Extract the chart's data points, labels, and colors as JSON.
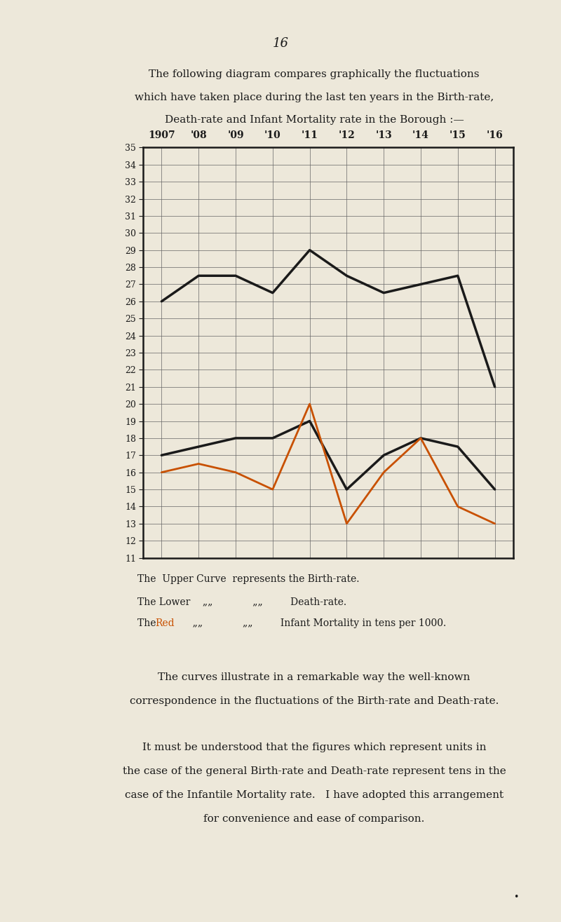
{
  "page_number": "16",
  "background_color": "#ede8da",
  "text_color": "#1a1a1a",
  "years": [
    1907,
    1908,
    1909,
    1910,
    1911,
    1912,
    1913,
    1914,
    1915,
    1916
  ],
  "year_labels": [
    "1907",
    "'08",
    "'09",
    "'10",
    "'11",
    "'12",
    "'13",
    "'14",
    "'15",
    "'16"
  ],
  "birth_rate": [
    26.0,
    27.5,
    27.5,
    26.5,
    29.0,
    27.5,
    26.5,
    27.0,
    27.5,
    21.0
  ],
  "death_rate": [
    17.0,
    17.5,
    18.0,
    18.0,
    19.0,
    15.0,
    17.0,
    18.0,
    17.5,
    15.0
  ],
  "infant_mortality": [
    16.0,
    16.5,
    16.0,
    15.0,
    20.0,
    13.0,
    16.0,
    18.0,
    14.0,
    13.0
  ],
  "birth_color": "#1a1a1a",
  "death_color": "#1a1a1a",
  "infant_color": "#c85000",
  "birth_linewidth": 2.5,
  "death_linewidth": 2.5,
  "infant_linewidth": 2.0,
  "ylim_min": 11,
  "ylim_max": 35,
  "xlim_min": 1906.5,
  "xlim_max": 1916.5,
  "grid_color": "#666666",
  "grid_linewidth": 0.5,
  "spine_color": "#1a1a1a",
  "spine_linewidth": 1.8,
  "tick_fontsize": 9,
  "year_label_fontsize": 10,
  "caption_fontsize": 10,
  "body_fontsize": 11,
  "page_num_fontsize": 13
}
